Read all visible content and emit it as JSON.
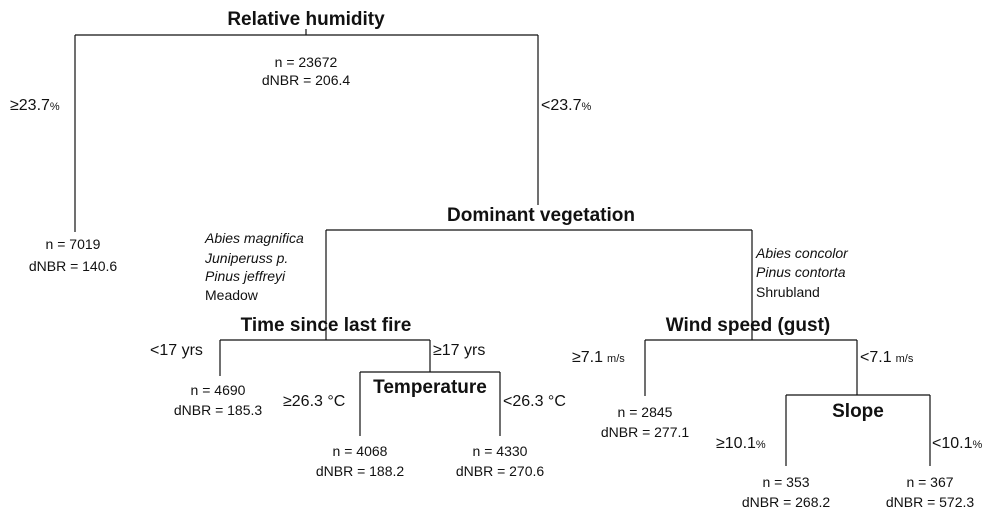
{
  "tree": {
    "relative_humidity": {
      "title": "Relative humidity",
      "n": "n = 23672",
      "dnbr": "dNBR = 206.4",
      "left": {
        "text": "≥23.7",
        "unit": "%"
      },
      "right": {
        "text": "<23.7",
        "unit": "%"
      }
    },
    "leaf_rh_high": {
      "n": "n = 7019",
      "dnbr": "dNBR = 140.6"
    },
    "dominant_vegetation": {
      "title": "Dominant vegetation",
      "left": [
        "Abies magnifica",
        "Juniperuss p.",
        "Pinus jeffreyi",
        "Meadow"
      ],
      "right": [
        "Abies concolor",
        "Pinus contorta",
        "Shrubland"
      ]
    },
    "time_since_last_fire": {
      "title": "Time since last fire",
      "left": "<17 yrs",
      "right": "≥17 yrs"
    },
    "leaf_fire_recent": {
      "n": "n = 4690",
      "dnbr": "dNBR = 185.3"
    },
    "temperature": {
      "title": "Temperature",
      "left": "≥26.3 °C",
      "right": "<26.3 °C"
    },
    "leaf_temp_high": {
      "n": "n = 4068",
      "dnbr": "dNBR = 188.2"
    },
    "leaf_temp_low": {
      "n": "n = 4330",
      "dnbr": "dNBR = 270.6"
    },
    "wind_speed": {
      "title": "Wind speed (gust)",
      "left": {
        "text": "≥7.1",
        "unit": "m/s"
      },
      "right": {
        "text": "<7.1",
        "unit": "m/s"
      }
    },
    "leaf_wind_high": {
      "n": "n = 2845",
      "dnbr": "dNBR = 277.1"
    },
    "slope": {
      "title": "Slope",
      "left": {
        "text": "≥10.1",
        "unit": "%"
      },
      "right": {
        "text": "<10.1",
        "unit": "%"
      }
    },
    "leaf_slope_high": {
      "n": "n = 353",
      "dnbr": "dNBR = 268.2"
    },
    "leaf_slope_low": {
      "n": "n = 367",
      "dnbr": "dNBR = 572.3"
    }
  }
}
